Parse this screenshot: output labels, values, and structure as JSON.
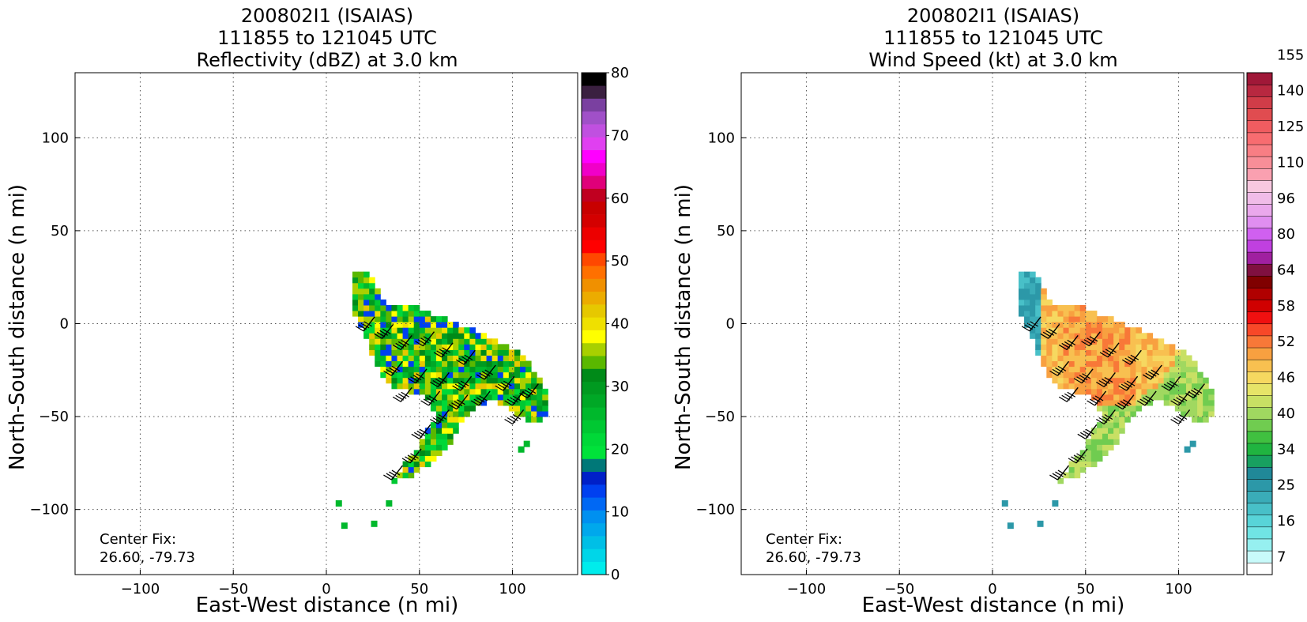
{
  "chart_data": [
    {
      "type": "heatmap",
      "title_lines": [
        "200802I1 (ISAIAS)",
        "111855 to 121045 UTC",
        "Reflectivity (dBZ) at 3.0 km"
      ],
      "xlabel": "East-West distance (n mi)",
      "ylabel": "North-South distance (n mi)",
      "xlim": [
        -135,
        135
      ],
      "ylim": [
        -135,
        135
      ],
      "xticks": [
        -100,
        -50,
        0,
        50,
        100
      ],
      "yticks": [
        -100,
        -50,
        0,
        50,
        100
      ],
      "xtick_labels": [
        "−100",
        "−50",
        "0",
        "50",
        "100"
      ],
      "ytick_labels": [
        "−100",
        "−50",
        "0",
        "50",
        "100"
      ],
      "grid": true,
      "annotation": [
        "Center Fix:",
        "26.60, -79.73"
      ],
      "colorbar": {
        "levels": [
          0,
          2.5,
          5,
          7.5,
          10,
          12.5,
          15,
          17.5,
          20,
          22.5,
          25,
          27.5,
          30,
          32.5,
          35,
          37.5,
          40,
          42.5,
          45,
          47.5,
          50,
          52.5,
          55,
          57.5,
          60,
          62.5,
          65,
          67.5,
          70,
          72.5,
          75,
          77.5,
          80
        ],
        "colors": [
          "#00ecec",
          "#00d6e8",
          "#00bfe6",
          "#00a8ec",
          "#0090f0",
          "#0068f4",
          "#0040f0",
          "#0020c8",
          "#007878",
          "#00e23a",
          "#00d838",
          "#00c832",
          "#00b82c",
          "#00a826",
          "#009a20",
          "#008a18",
          "#5ab800",
          "#a8d000",
          "#ffff00",
          "#efe000",
          "#e6c800",
          "#ecac00",
          "#f09000",
          "#ff7000",
          "#ff4800",
          "#ff0000",
          "#ec0000",
          "#d40000",
          "#c80000",
          "#c00020",
          "#e0007a",
          "#f000c8",
          "#ff00ff",
          "#e040f0",
          "#c050e0",
          "#a050c8",
          "#7a40a0",
          "#3a2040",
          "#000000"
        ],
        "tick_values": [
          0,
          10,
          20,
          30,
          40,
          50,
          60,
          70,
          80
        ],
        "tick_labels": [
          "0",
          "10",
          "20",
          "30",
          "40",
          "50",
          "60",
          "70",
          "80"
        ]
      }
    },
    {
      "type": "heatmap",
      "title_lines": [
        "200802I1 (ISAIAS)",
        "111855 to 121045 UTC",
        "Wind Speed (kt) at 3.0 km"
      ],
      "xlabel": "East-West distance (n mi)",
      "ylabel": "North-South distance (n mi)",
      "xlim": [
        -135,
        135
      ],
      "ylim": [
        -135,
        135
      ],
      "xticks": [
        -100,
        -50,
        0,
        50,
        100
      ],
      "yticks": [
        -100,
        -50,
        0,
        50,
        100
      ],
      "xtick_labels": [
        "−100",
        "−50",
        "0",
        "50",
        "100"
      ],
      "ytick_labels": [
        "−100",
        "−50",
        "0",
        "50",
        "100"
      ],
      "grid": true,
      "annotation": [
        "Center Fix:",
        "26.60, -79.73"
      ],
      "colorbar": {
        "colors": [
          "#ffffff",
          "#c8fafa",
          "#96f0f0",
          "#70e4e4",
          "#58d4d8",
          "#48c0c8",
          "#3aacb8",
          "#2c98a8",
          "#208898",
          "#18a060",
          "#20b440",
          "#40c040",
          "#70cc50",
          "#a0d860",
          "#c8e064",
          "#e6e468",
          "#f6d860",
          "#f8c050",
          "#f8a040",
          "#f87838",
          "#f84828",
          "#f01010",
          "#d00000",
          "#b00000",
          "#800000",
          "#801040",
          "#a020a0",
          "#c040e0",
          "#d060f0",
          "#e08ef0",
          "#eaa8ec",
          "#f0bce8",
          "#f8c8e0",
          "#faa0b0",
          "#f88e98",
          "#f87e84",
          "#f86c70",
          "#f05c60",
          "#e04c50",
          "#d03c48",
          "#b82840",
          "#a01838"
        ],
        "tick_labels": [
          "7",
          "16",
          "25",
          "34",
          "40",
          "46",
          "52",
          "58",
          "64",
          "80",
          "96",
          "110",
          "125",
          "140",
          "155"
        ]
      }
    }
  ],
  "wind_barbs": "black barbs",
  "title_font_color": "#000000"
}
